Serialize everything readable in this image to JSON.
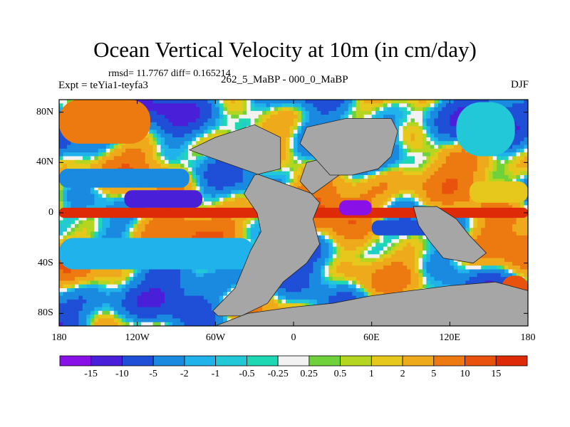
{
  "chart_data": {
    "type": "heatmap",
    "title": "Ocean Vertical Velocity at 10m (in cm/day)",
    "stats_text": "rmsd= 11.7767 diff= 0.165214",
    "subtitle": "262_5_MaBP - 000_0_MaBP",
    "experiment": "Expt = teYia1-teyfa3",
    "season": "DJF",
    "xlim": [
      -180,
      180
    ],
    "ylim": [
      -90,
      90
    ],
    "x_ticks": [
      {
        "value": -180,
        "label": "180"
      },
      {
        "value": -120,
        "label": "120W"
      },
      {
        "value": -60,
        "label": "60W"
      },
      {
        "value": 0,
        "label": "0"
      },
      {
        "value": 60,
        "label": "60E"
      },
      {
        "value": 120,
        "label": "120E"
      },
      {
        "value": 180,
        "label": "180"
      }
    ],
    "y_ticks": [
      {
        "value": 80,
        "label": "80N"
      },
      {
        "value": 40,
        "label": "40N"
      },
      {
        "value": 0,
        "label": "0"
      },
      {
        "value": -40,
        "label": "40S"
      },
      {
        "value": -80,
        "label": "80S"
      }
    ],
    "colorbar": {
      "levels": [
        "-15",
        "-10",
        "-5",
        "-2",
        "-1",
        "-0.5",
        "-0.25",
        "0.25",
        "0.5",
        "1",
        "2",
        "5",
        "10",
        "15"
      ],
      "colors": [
        "#8a10e8",
        "#4a1fd8",
        "#1f4fd6",
        "#1a8ae0",
        "#20b2ea",
        "#22c8d8",
        "#1ed8b4",
        "#f2f2f2",
        "#6fd23a",
        "#b4d620",
        "#e6c81c",
        "#eeaa1a",
        "#ec7a10",
        "#e8520c",
        "#de2a06"
      ]
    },
    "land_color": "#a6a6a6",
    "land_regions": [
      {
        "name": "land-mass-america-africa",
        "points": [
          [
            -80,
            50
          ],
          [
            -60,
            60
          ],
          [
            -30,
            70
          ],
          [
            -10,
            60
          ],
          [
            -10,
            35
          ],
          [
            -30,
            30
          ],
          [
            -38,
            15
          ],
          [
            -28,
            0
          ],
          [
            -25,
            -15
          ],
          [
            -33,
            -30
          ],
          [
            -45,
            -60
          ],
          [
            -62,
            -78
          ],
          [
            -58,
            -82
          ],
          [
            -40,
            -82
          ],
          [
            -20,
            -72
          ],
          [
            -8,
            -55
          ],
          [
            10,
            -40
          ],
          [
            20,
            -25
          ],
          [
            15,
            -5
          ],
          [
            20,
            8
          ],
          [
            5,
            25
          ],
          [
            10,
            40
          ],
          [
            30,
            45
          ],
          [
            35,
            30
          ],
          [
            15,
            15
          ]
        ]
      },
      {
        "name": "land-mass-eurasia",
        "points": [
          [
            10,
            68
          ],
          [
            40,
            75
          ],
          [
            75,
            75
          ],
          [
            80,
            65
          ],
          [
            75,
            45
          ],
          [
            65,
            35
          ],
          [
            45,
            30
          ],
          [
            28,
            30
          ],
          [
            15,
            45
          ],
          [
            5,
            55
          ]
        ]
      },
      {
        "name": "land-mass-antarctic",
        "points": [
          [
            -60,
            -90
          ],
          [
            180,
            -90
          ],
          [
            180,
            -62
          ],
          [
            155,
            -55
          ],
          [
            120,
            -58
          ],
          [
            90,
            -62
          ],
          [
            60,
            -66
          ],
          [
            30,
            -72
          ],
          [
            0,
            -75
          ],
          [
            -35,
            -80
          ]
        ]
      },
      {
        "name": "land-mass-asia-australia",
        "points": [
          [
            92,
            5
          ],
          [
            110,
            5
          ],
          [
            125,
            -5
          ],
          [
            135,
            -18
          ],
          [
            148,
            -32
          ],
          [
            138,
            -40
          ],
          [
            115,
            -36
          ],
          [
            104,
            -22
          ],
          [
            96,
            -10
          ]
        ]
      }
    ],
    "field_patches": [
      {
        "lon": [
          -180,
          180
        ],
        "lat": [
          -4,
          4
        ],
        "level": "15"
      },
      {
        "lon": [
          -130,
          -70
        ],
        "lat": [
          4,
          18
        ],
        "level": "-10"
      },
      {
        "lon": [
          -180,
          -80
        ],
        "lat": [
          20,
          35
        ],
        "level": "-2"
      },
      {
        "lon": [
          -180,
          -30
        ],
        "lat": [
          -45,
          -20
        ],
        "level": "-1"
      },
      {
        "lon": [
          60,
          110
        ],
        "lat": [
          -18,
          -6
        ],
        "level": "-5"
      },
      {
        "lon": [
          35,
          60
        ],
        "lat": [
          -2,
          10
        ],
        "level": "-15"
      },
      {
        "lon": [
          160,
          180
        ],
        "lat": [
          -70,
          -50
        ],
        "level": "10"
      },
      {
        "lon": [
          -180,
          -110
        ],
        "lat": [
          55,
          90
        ],
        "level": "5"
      },
      {
        "lon": [
          125,
          170
        ],
        "lat": [
          45,
          88
        ],
        "level": "-0.5"
      },
      {
        "lon": [
          135,
          180
        ],
        "lat": [
          8,
          25
        ],
        "level": "1"
      }
    ]
  }
}
